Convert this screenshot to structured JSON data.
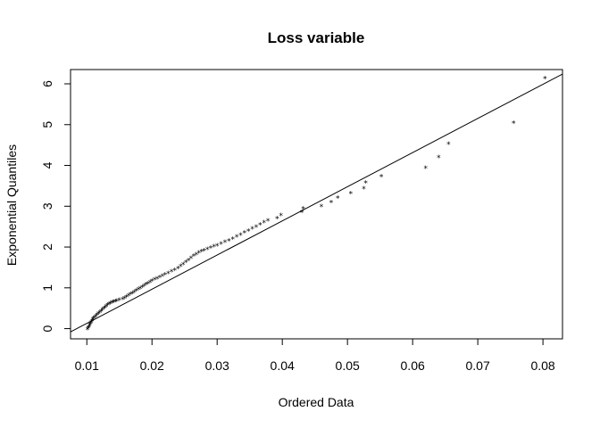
{
  "chart_data": {
    "type": "scatter",
    "title": "Loss variable",
    "xlabel": "Ordered Data",
    "ylabel": "Exponential Quantiles",
    "xlim": [
      0.0075,
      0.083
    ],
    "ylim": [
      -0.25,
      6.35
    ],
    "x_ticks": [
      0.01,
      0.02,
      0.03,
      0.04,
      0.05,
      0.06,
      0.07,
      0.08
    ],
    "x_tick_labels": [
      "0.01",
      "0.02",
      "0.03",
      "0.04",
      "0.05",
      "0.06",
      "0.07",
      "0.08"
    ],
    "y_ticks": [
      0,
      1,
      2,
      3,
      4,
      5,
      6
    ],
    "y_tick_labels": [
      "0",
      "1",
      "2",
      "3",
      "4",
      "5",
      "6"
    ],
    "point_marker": "*",
    "reference_line": {
      "x1": 0.0075,
      "y1": -0.08,
      "x2": 0.083,
      "y2": 6.24
    },
    "grid": false,
    "x": [
      0.0101,
      0.0102,
      0.0103,
      0.0104,
      0.0105,
      0.0106,
      0.0107,
      0.0108,
      0.0109,
      0.011,
      0.0112,
      0.0114,
      0.0116,
      0.0118,
      0.012,
      0.0122,
      0.0124,
      0.0126,
      0.0128,
      0.013,
      0.0132,
      0.0134,
      0.0136,
      0.0138,
      0.014,
      0.0142,
      0.0144,
      0.0146,
      0.015,
      0.0155,
      0.0158,
      0.0161,
      0.0164,
      0.0167,
      0.017,
      0.0173,
      0.0176,
      0.0179,
      0.0182,
      0.0185,
      0.0188,
      0.0191,
      0.0194,
      0.0197,
      0.02,
      0.0204,
      0.0208,
      0.0212,
      0.0216,
      0.022,
      0.0225,
      0.023,
      0.0235,
      0.024,
      0.0244,
      0.0248,
      0.0252,
      0.0256,
      0.026,
      0.0264,
      0.0268,
      0.0272,
      0.0276,
      0.028,
      0.0285,
      0.029,
      0.0295,
      0.03,
      0.0306,
      0.0312,
      0.0318,
      0.0324,
      0.033,
      0.0336,
      0.0342,
      0.0348,
      0.0354,
      0.036,
      0.0366,
      0.0372,
      0.0378,
      0.0392,
      0.0398,
      0.043,
      0.0432,
      0.046,
      0.0475,
      0.0485,
      0.0505,
      0.0525,
      0.0528,
      0.0552,
      0.062,
      0.064,
      0.0655,
      0.0755,
      0.0803
    ],
    "y": [
      0.0,
      0.03,
      0.06,
      0.09,
      0.12,
      0.15,
      0.18,
      0.21,
      0.24,
      0.27,
      0.3,
      0.33,
      0.36,
      0.39,
      0.42,
      0.45,
      0.48,
      0.51,
      0.54,
      0.57,
      0.6,
      0.62,
      0.64,
      0.66,
      0.67,
      0.68,
      0.69,
      0.7,
      0.72,
      0.74,
      0.77,
      0.8,
      0.83,
      0.86,
      0.89,
      0.92,
      0.95,
      0.98,
      1.01,
      1.04,
      1.07,
      1.1,
      1.13,
      1.16,
      1.19,
      1.22,
      1.25,
      1.28,
      1.31,
      1.34,
      1.38,
      1.42,
      1.46,
      1.5,
      1.55,
      1.6,
      1.65,
      1.7,
      1.75,
      1.8,
      1.84,
      1.88,
      1.91,
      1.94,
      1.97,
      2.0,
      2.03,
      2.06,
      2.1,
      2.14,
      2.18,
      2.22,
      2.27,
      2.32,
      2.37,
      2.42,
      2.47,
      2.52,
      2.57,
      2.62,
      2.67,
      2.72,
      2.8,
      2.87,
      2.96,
      3.02,
      3.12,
      3.22,
      3.33,
      3.45,
      3.6,
      3.75,
      3.96,
      4.22,
      4.55,
      5.06,
      6.15
    ]
  }
}
